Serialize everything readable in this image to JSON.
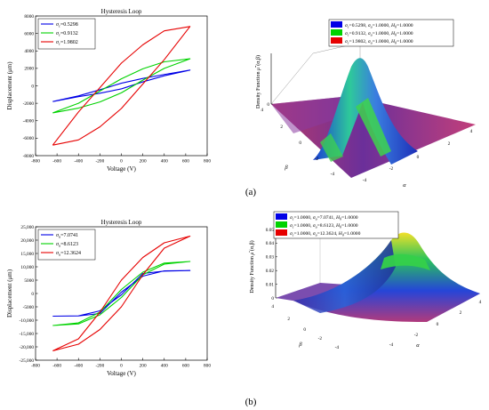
{
  "panel_labels": {
    "a": "(a)",
    "b": "(b)"
  },
  "colors": {
    "blue": "#0000e6",
    "green": "#00d200",
    "red": "#e60000"
  },
  "chart_data": [
    {
      "type": "line",
      "title": "Hysteresis Loop",
      "xlabel": "Voltage (V)",
      "ylabel": "Displacement (μm)",
      "xlim": [
        -800,
        800
      ],
      "ylim": [
        -8000,
        8000
      ],
      "xticks": [
        "-800",
        "-600",
        "-400",
        "-200",
        "0",
        "200",
        "400",
        "600",
        "800"
      ],
      "yticks": [
        "-8000",
        "-6000",
        "-4000",
        "-2000",
        "0",
        "2000",
        "4000",
        "6000",
        "8000"
      ],
      "legend_loc": "top-left",
      "series": [
        {
          "sym": "σ",
          "sub": "c",
          "val": "=0.5298",
          "color": "blue",
          "x": [
            -640,
            -400,
            -200,
            0,
            200,
            400,
            640,
            400,
            200,
            0,
            -200,
            -400,
            -640
          ],
          "y": [
            -1800,
            -1250,
            -850,
            -350,
            450,
            1150,
            1800,
            1300,
            850,
            300,
            -450,
            -1150,
            -1800
          ]
        },
        {
          "sym": "σ",
          "sub": "c",
          "val": "=0.9132",
          "color": "green",
          "x": [
            -640,
            -400,
            -200,
            0,
            200,
            400,
            640,
            400,
            200,
            0,
            -200,
            -400,
            -640
          ],
          "y": [
            -3100,
            -2550,
            -1850,
            -800,
            650,
            2000,
            3100,
            2750,
            1950,
            800,
            -600,
            -2000,
            -3100
          ]
        },
        {
          "sym": "σ",
          "sub": "c",
          "val": "=1.9802",
          "color": "red",
          "x": [
            -640,
            -400,
            -200,
            0,
            200,
            400,
            640,
            400,
            200,
            0,
            -200,
            -400,
            -640
          ],
          "y": [
            -6800,
            -6200,
            -4700,
            -2600,
            200,
            3000,
            6800,
            6300,
            4700,
            2600,
            -200,
            -3000,
            -6800
          ]
        }
      ]
    },
    {
      "type": "line",
      "title": "Hysteresis Loop",
      "xlabel": "Voltage (V)",
      "ylabel": "Displacement (μm)",
      "xlim": [
        -800,
        800
      ],
      "ylim": [
        -25000,
        25000
      ],
      "xticks": [
        "-800",
        "-600",
        "-400",
        "-200",
        "0",
        "200",
        "400",
        "600",
        "800"
      ],
      "yticks": [
        "-25,000",
        "-20,000",
        "-15,000",
        "-10,000",
        "-5000",
        "0",
        "5000",
        "10,000",
        "15,000",
        "20,000",
        "25,000"
      ],
      "legend_loc": "top-left",
      "series": [
        {
          "sym": "σ",
          "sub": "u",
          "val": "=7.0741",
          "color": "blue",
          "x": [
            -640,
            -400,
            -200,
            0,
            200,
            400,
            640,
            400,
            200,
            0,
            -200,
            -400,
            -640
          ],
          "y": [
            -8500,
            -8400,
            -6500,
            -500,
            7500,
            8400,
            8600,
            8500,
            6500,
            500,
            -7500,
            -8400,
            -8500
          ]
        },
        {
          "sym": "σ",
          "sub": "u",
          "val": "=8.6123",
          "color": "green",
          "x": [
            -640,
            -400,
            -200,
            0,
            200,
            400,
            640,
            400,
            200,
            0,
            -200,
            -400,
            -640
          ],
          "y": [
            -12000,
            -11400,
            -8000,
            -1500,
            7000,
            11000,
            12000,
            11400,
            8000,
            1500,
            -7000,
            -11000,
            -12000
          ]
        },
        {
          "sym": "σ",
          "sub": "u",
          "val": "=12.3624",
          "color": "red",
          "x": [
            -640,
            -400,
            -200,
            0,
            200,
            400,
            640,
            400,
            200,
            0,
            -200,
            -400,
            -640
          ],
          "y": [
            -21500,
            -19000,
            -13500,
            -5000,
            7000,
            17000,
            21500,
            19000,
            13500,
            5000,
            -7000,
            -17000,
            -21500
          ]
        }
      ]
    },
    {
      "type": "surface",
      "zlabel": "Density Function μ'''(α,β)",
      "zlabel_parts": {
        "pre": "Density Function ",
        "mu": "μ",
        "sup": "'''",
        "post": "(α,β)"
      },
      "xlabel": "α",
      "ylabel": "β",
      "zticks": [
        "0"
      ],
      "alpha_ticks": [
        "-4",
        "-2",
        "0",
        "2",
        "4"
      ],
      "beta_ticks": [
        "-4",
        "-2",
        "0",
        "2",
        "4"
      ],
      "legend_loc": "top-right",
      "legend": [
        {
          "color": "blue",
          "sc": "=0.5298",
          "su": "=1.0000",
          "h0": "=1.0000"
        },
        {
          "color": "green",
          "sc": "=0.9132",
          "su": "=1.0000",
          "h0": "=1.0000"
        },
        {
          "color": "red",
          "sc": "=1.9802",
          "su": "=1.0000",
          "h0": "=1.0000"
        }
      ]
    },
    {
      "type": "surface",
      "zlabel": "Density Function μ''(α,β)",
      "zlabel_parts": {
        "pre": "Density Function ",
        "mu": "μ",
        "sup": "''",
        "post": "(α,β)"
      },
      "xlabel": "α",
      "ylabel": "β",
      "zticks": [
        "0",
        "0.01",
        "0.02",
        "0.03",
        "0.04",
        "0.05"
      ],
      "alpha_ticks": [
        "-4",
        "-2",
        "0",
        "2",
        "4"
      ],
      "beta_ticks": [
        "-4",
        "-2",
        "0",
        "2",
        "4"
      ],
      "legend_loc": "top-left",
      "legend": [
        {
          "color": "blue",
          "sc": "=1.0000",
          "su": "=7.0741",
          "h0": "=1.0000"
        },
        {
          "color": "green",
          "sc": "=1.0000",
          "su": "=8.6123",
          "h0": "=1.0000"
        },
        {
          "color": "red",
          "sc": "=1.0000",
          "su": "=12.3624",
          "h0": "=1.0000"
        }
      ]
    }
  ]
}
